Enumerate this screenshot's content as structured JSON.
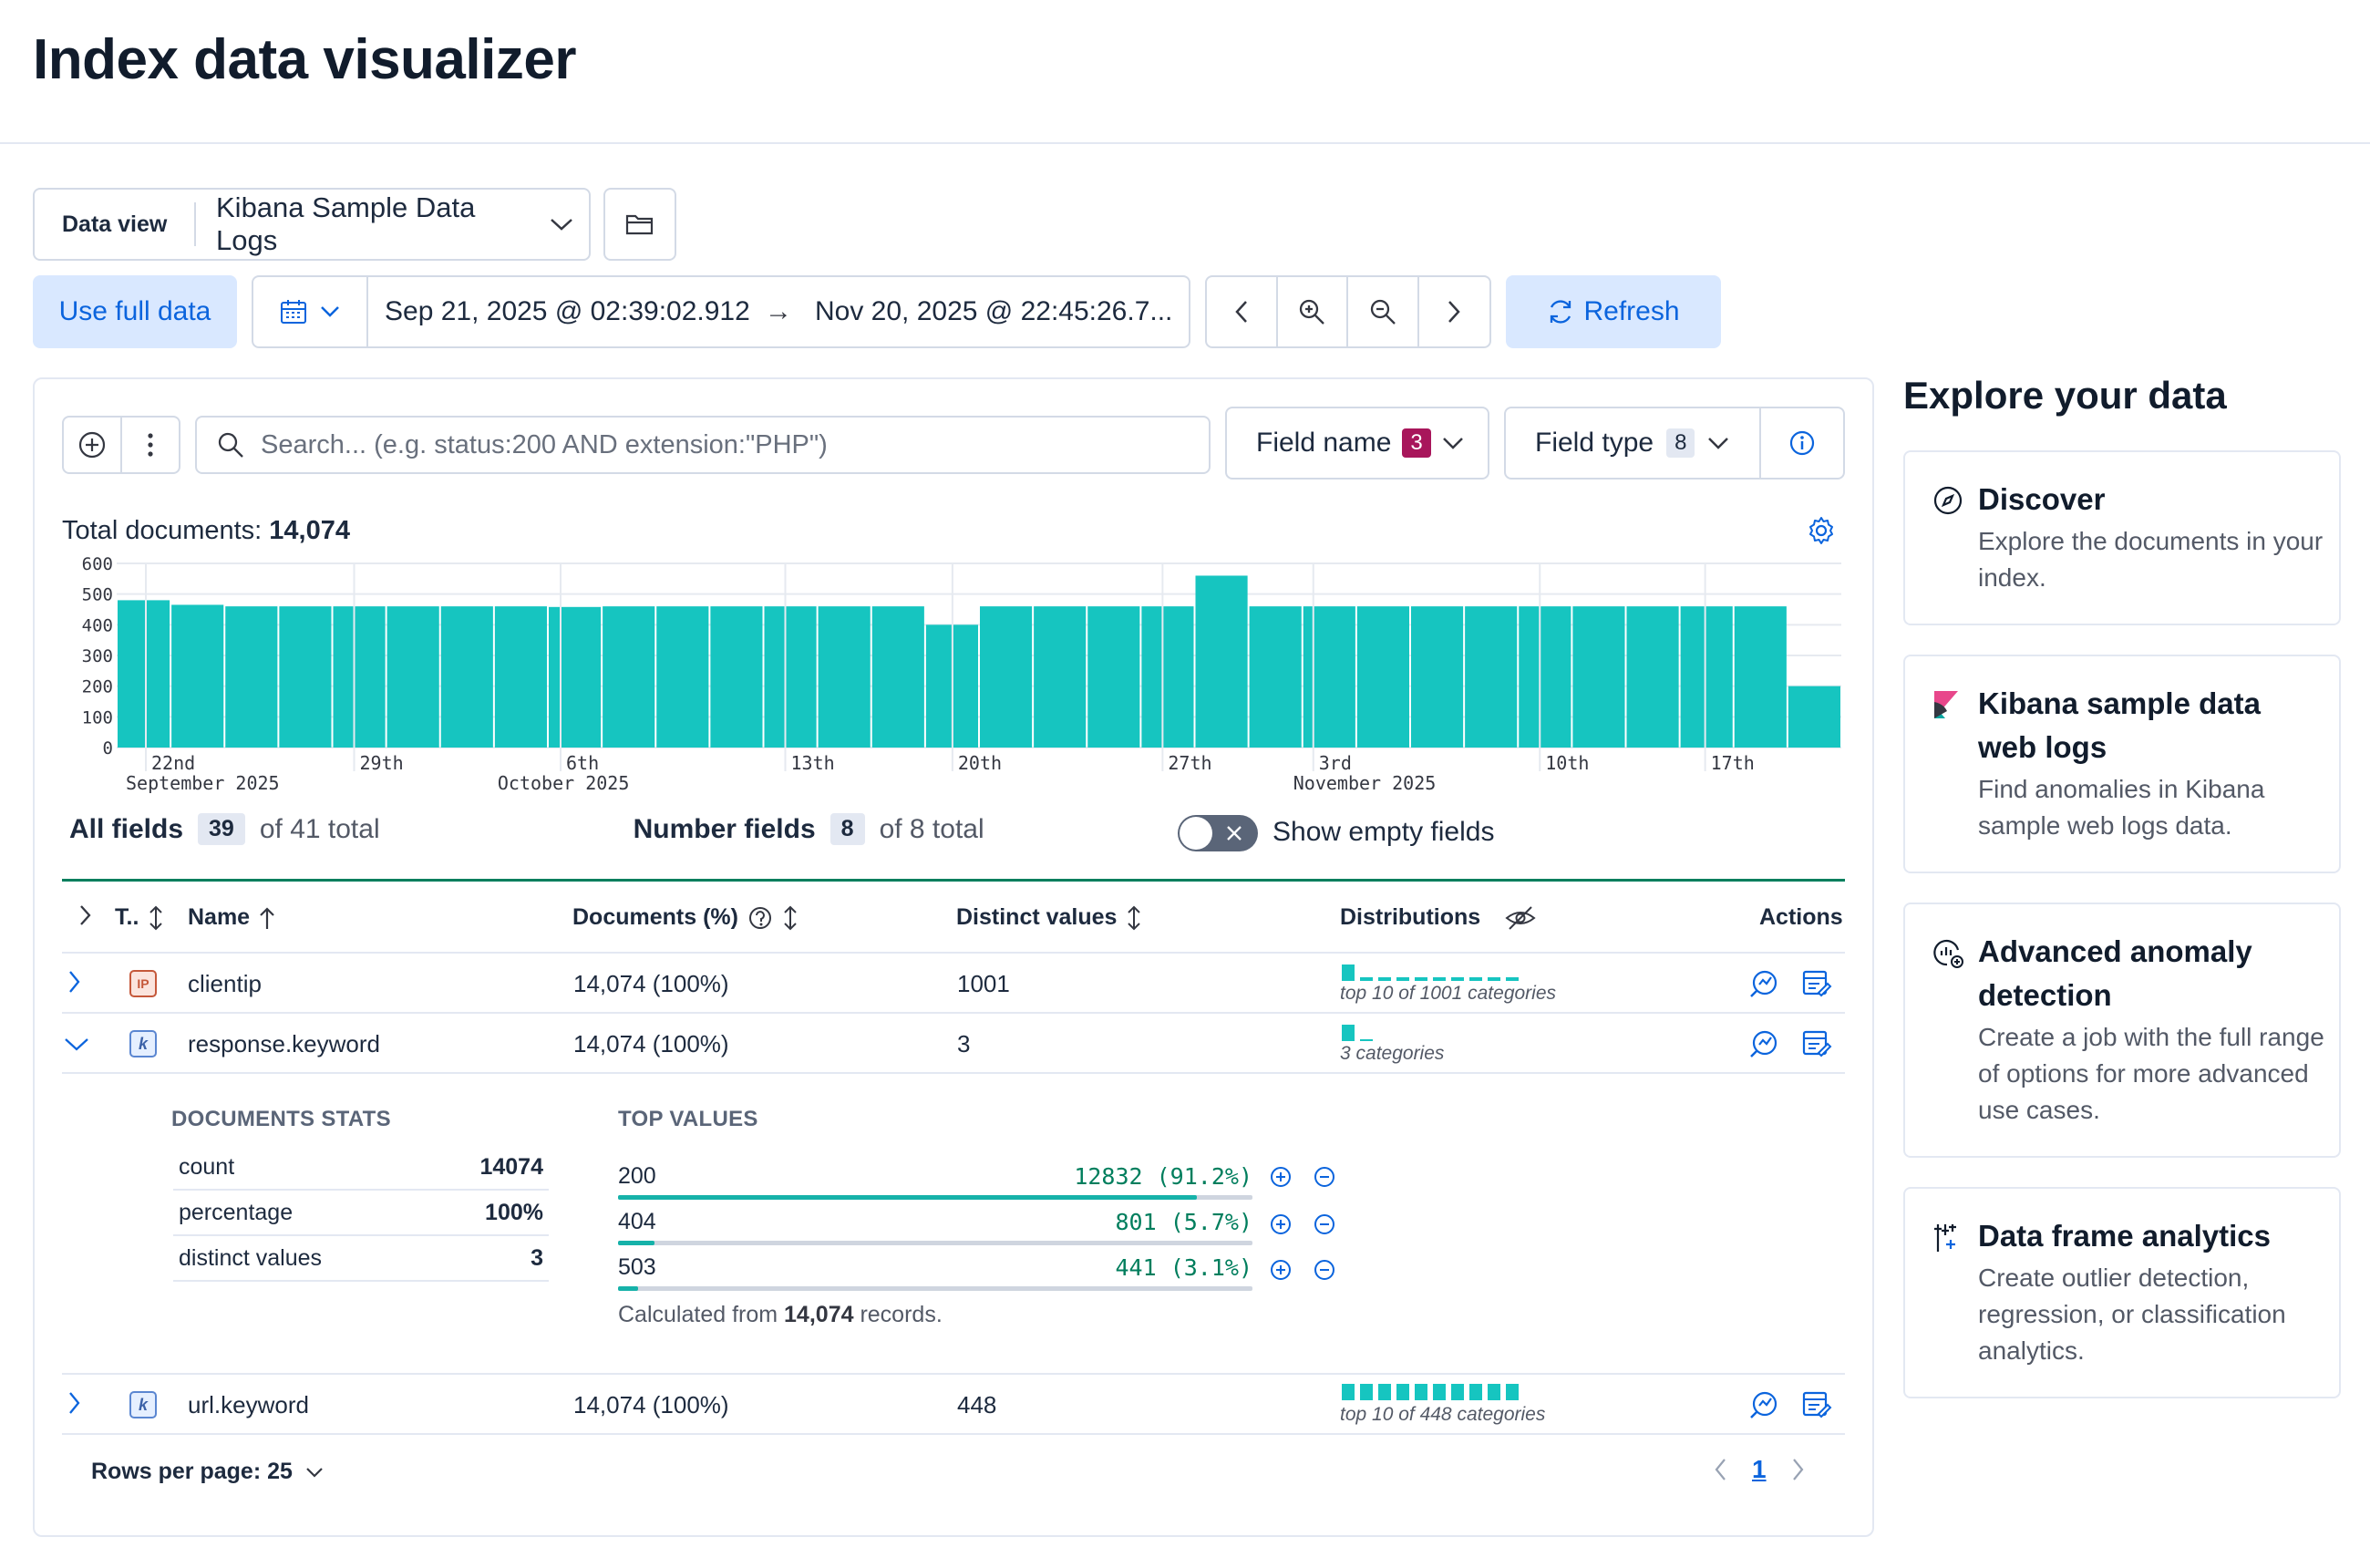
{
  "page": {
    "title": "Index data visualizer"
  },
  "data_view": {
    "label": "Data view",
    "value": "Kibana Sample Data Logs"
  },
  "time": {
    "use_full_label": "Use full data",
    "start": "Sep 21, 2025 @ 02:39:02.912",
    "end": "Nov 20, 2025 @ 22:45:26.7...",
    "arrow": "→",
    "refresh_label": "Refresh"
  },
  "search": {
    "placeholder": "Search... (e.g. status:200 AND extension:\"PHP\")"
  },
  "filters": {
    "field_name_label": "Field name",
    "field_name_count": "3",
    "field_type_label": "Field type",
    "field_type_count": "8"
  },
  "total_docs": {
    "label": "Total documents:",
    "value": "14,074"
  },
  "chart_data": {
    "type": "bar",
    "y_ticks": [
      "600",
      "500",
      "400",
      "300",
      "200",
      "100",
      "0"
    ],
    "ylim": [
      0,
      600
    ],
    "x_tick_labels": [
      {
        "day": "22nd",
        "month": "September 2025"
      },
      {
        "day": "29th",
        "month": ""
      },
      {
        "day": "",
        "month": "October 2025"
      },
      {
        "day": "6th",
        "month": ""
      },
      {
        "day": "13th",
        "month": ""
      },
      {
        "day": "20th",
        "month": ""
      },
      {
        "day": "27th",
        "month": ""
      },
      {
        "day": "3rd",
        "month": "November 2025"
      },
      {
        "day": "10th",
        "month": ""
      },
      {
        "day": "17th",
        "month": ""
      }
    ],
    "values": [
      480,
      465,
      460,
      460,
      460,
      460,
      460,
      460,
      458,
      460,
      460,
      460,
      460,
      460,
      460,
      400,
      460,
      460,
      460,
      460,
      560,
      460,
      460,
      460,
      460,
      460,
      460,
      460,
      460,
      460,
      460,
      200
    ],
    "color": "#16c5c0"
  },
  "field_counts": {
    "all_label": "All fields",
    "all_count": "39",
    "all_total": "of 41 total",
    "number_label": "Number fields",
    "number_count": "8",
    "number_total": "of 8 total",
    "show_empty_label": "Show empty fields"
  },
  "table": {
    "headers": {
      "type": "T..",
      "name": "Name",
      "documents": "Documents (%)",
      "distinct": "Distinct values",
      "distributions": "Distributions",
      "actions": "Actions"
    },
    "rows": [
      {
        "type_icon": "IP",
        "name": "clientip",
        "documents": "14,074 (100%)",
        "distinct": "1001",
        "dist_caption": "top 10 of 1001 categories"
      },
      {
        "type_icon": "k",
        "name": "response.keyword",
        "documents": "14,074 (100%)",
        "distinct": "3",
        "dist_caption": "3 categories"
      },
      {
        "type_icon": "k",
        "name": "url.keyword",
        "documents": "14,074 (100%)",
        "distinct": "448",
        "dist_caption": "top 10 of 448 categories"
      }
    ]
  },
  "expanded": {
    "stats_title": "DOCUMENTS STATS",
    "stats": [
      {
        "label": "count",
        "value": "14074"
      },
      {
        "label": "percentage",
        "value": "100%"
      },
      {
        "label": "distinct values",
        "value": "3"
      }
    ],
    "top_title": "TOP VALUES",
    "top_values": [
      {
        "value": "200",
        "count": "12832 (91.2%)",
        "fraction": 0.912
      },
      {
        "value": "404",
        "count": "801 (5.7%)",
        "fraction": 0.057
      },
      {
        "value": "503",
        "count": "441 (3.1%)",
        "fraction": 0.031
      }
    ],
    "calc_prefix": "Calculated from",
    "calc_value": "14,074",
    "calc_suffix": "records."
  },
  "pagination": {
    "rows_per_page": "Rows per page: 25",
    "current_page": "1"
  },
  "explore": {
    "title": "Explore your data",
    "cards": [
      {
        "title": "Discover",
        "desc": "Explore the documents in your index."
      },
      {
        "title": "Kibana sample data web logs",
        "desc": "Find anomalies in Kibana sample web logs data."
      },
      {
        "title": "Advanced anomaly detection",
        "desc": "Create a job with the full range of options for more advanced use cases."
      },
      {
        "title": "Data frame analytics",
        "desc": "Create outlier detection, regression, or classification analytics."
      }
    ]
  }
}
